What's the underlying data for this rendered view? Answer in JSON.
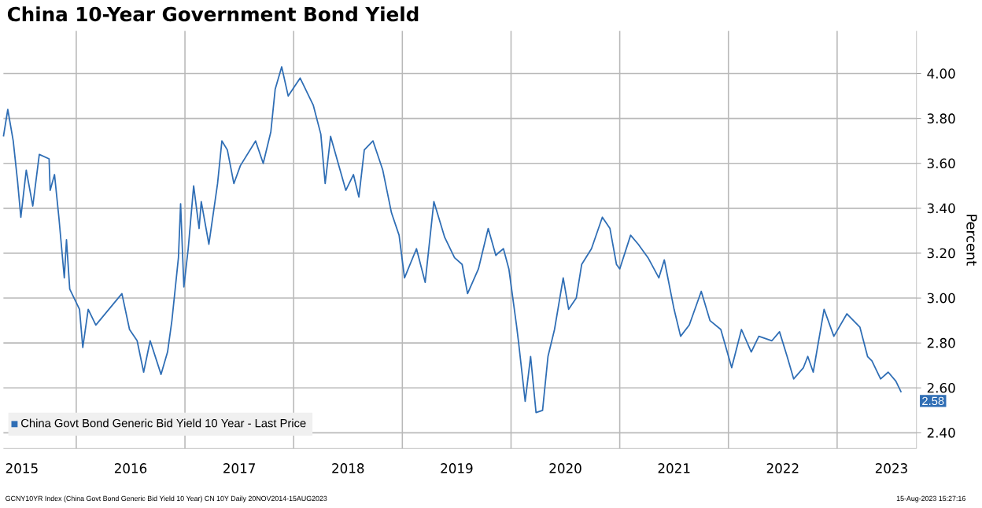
{
  "chart_data": {
    "type": "line",
    "title": "China 10-Year Government Bond Yield",
    "ylabel": "Percent",
    "annotations": [
      "GCNY10YR Index (China Govt Bond Generic Bid Yield 10 Year) CN 10Y Daily 20NOV2014-15AUG2023",
      "15-Aug-2023 15:27:16",
      "2.58"
    ],
    "xlim": [
      2015.33,
      2023.73
    ],
    "ylim": [
      2.33,
      4.19
    ],
    "xticks": [
      {
        "value": 2016,
        "label": null
      },
      {
        "value": 2017,
        "label": null
      },
      {
        "value": 2018,
        "label": null
      },
      {
        "value": 2019,
        "label": null
      },
      {
        "value": 2020,
        "label": null
      },
      {
        "value": 2021,
        "label": null
      },
      {
        "value": 2022,
        "label": null
      },
      {
        "value": 2023,
        "label": null
      },
      {
        "value": 2015.5,
        "label": "2015"
      },
      {
        "value": 2016.5,
        "label": "2016"
      },
      {
        "value": 2017.5,
        "label": "2017"
      },
      {
        "value": 2018.5,
        "label": "2018"
      },
      {
        "value": 2019.5,
        "label": "2019"
      },
      {
        "value": 2020.5,
        "label": "2020"
      },
      {
        "value": 2021.5,
        "label": "2021"
      },
      {
        "value": 2022.5,
        "label": "2022"
      },
      {
        "value": 2023.5,
        "label": "2023"
      }
    ],
    "yticks": [
      {
        "value": 2.4,
        "label": "2.40"
      },
      {
        "value": 2.6,
        "label": "2.60"
      },
      {
        "value": 2.8,
        "label": "2.80"
      },
      {
        "value": 3.0,
        "label": "3.00"
      },
      {
        "value": 3.2,
        "label": "3.20"
      },
      {
        "value": 3.4,
        "label": "3.40"
      },
      {
        "value": 3.6,
        "label": "3.60"
      },
      {
        "value": 3.8,
        "label": "3.80"
      },
      {
        "value": 4.0,
        "label": "4.00"
      }
    ],
    "grid": true,
    "legend": "bottom left",
    "marker": "none",
    "line_style": "solid",
    "x": [
      2015.33,
      2015.37,
      2015.42,
      2015.46,
      2015.49,
      2015.54,
      2015.6,
      2015.66,
      2015.75,
      2015.76,
      2015.8,
      2015.84,
      2015.89,
      2015.91,
      2015.94,
      2016.03,
      2016.06,
      2016.11,
      2016.18,
      2016.3,
      2016.42,
      2016.49,
      2016.56,
      2016.62,
      2016.68,
      2016.78,
      2016.84,
      2016.88,
      2016.94,
      2016.96,
      2016.99,
      2017.03,
      2017.08,
      2017.13,
      2017.15,
      2017.22,
      2017.3,
      2017.34,
      2017.39,
      2017.45,
      2017.51,
      2017.65,
      2017.72,
      2017.79,
      2017.83,
      2017.89,
      2017.95,
      2018.06,
      2018.18,
      2018.25,
      2018.29,
      2018.34,
      2018.48,
      2018.55,
      2018.6,
      2018.65,
      2018.73,
      2018.82,
      2018.9,
      2018.97,
      2019.02,
      2019.13,
      2019.21,
      2019.29,
      2019.39,
      2019.48,
      2019.55,
      2019.6,
      2019.7,
      2019.79,
      2019.86,
      2019.88,
      2019.93,
      2019.98,
      2020.05,
      2020.07,
      2020.13,
      2020.18,
      2020.23,
      2020.29,
      2020.34,
      2020.4,
      2020.48,
      2020.53,
      2020.6,
      2020.65,
      2020.74,
      2020.84,
      2020.91,
      2020.97,
      2021.0,
      2021.1,
      2021.17,
      2021.26,
      2021.36,
      2021.41,
      2021.5,
      2021.56,
      2021.64,
      2021.75,
      2021.83,
      2021.93,
      2022.03,
      2022.12,
      2022.21,
      2022.28,
      2022.4,
      2022.47,
      2022.54,
      2022.6,
      2022.69,
      2022.73,
      2022.78,
      2022.88,
      2022.97,
      2023.09,
      2023.21,
      2023.28,
      2023.32,
      2023.4,
      2023.47,
      2023.54,
      2023.59
    ],
    "series": [
      {
        "name": "China Govt Bond Generic Bid Yield 10 Year - Last Price",
        "color": "#2f6eb5",
        "values": [
          3.72,
          3.84,
          3.7,
          3.52,
          3.36,
          3.57,
          3.41,
          3.64,
          3.62,
          3.48,
          3.55,
          3.36,
          3.09,
          3.26,
          3.04,
          2.95,
          2.78,
          2.95,
          2.88,
          2.95,
          3.02,
          2.86,
          2.81,
          2.67,
          2.81,
          2.66,
          2.76,
          2.9,
          3.18,
          3.42,
          3.05,
          3.22,
          3.5,
          3.31,
          3.43,
          3.24,
          3.51,
          3.7,
          3.66,
          3.51,
          3.59,
          3.7,
          3.6,
          3.74,
          3.93,
          4.03,
          3.9,
          3.98,
          3.86,
          3.73,
          3.51,
          3.72,
          3.48,
          3.55,
          3.45,
          3.66,
          3.7,
          3.57,
          3.38,
          3.28,
          3.09,
          3.22,
          3.07,
          3.43,
          3.27,
          3.18,
          3.15,
          3.02,
          3.13,
          3.31,
          3.19,
          3.2,
          3.22,
          3.13,
          2.88,
          2.8,
          2.54,
          2.74,
          2.49,
          2.5,
          2.74,
          2.86,
          3.09,
          2.95,
          3.0,
          3.15,
          3.22,
          3.36,
          3.31,
          3.15,
          3.13,
          3.28,
          3.24,
          3.18,
          3.09,
          3.17,
          2.95,
          2.83,
          2.88,
          3.03,
          2.9,
          2.86,
          2.69,
          2.86,
          2.76,
          2.83,
          2.81,
          2.85,
          2.74,
          2.64,
          2.69,
          2.74,
          2.67,
          2.95,
          2.83,
          2.93,
          2.87,
          2.74,
          2.72,
          2.64,
          2.67,
          2.63,
          2.58
        ]
      }
    ]
  }
}
